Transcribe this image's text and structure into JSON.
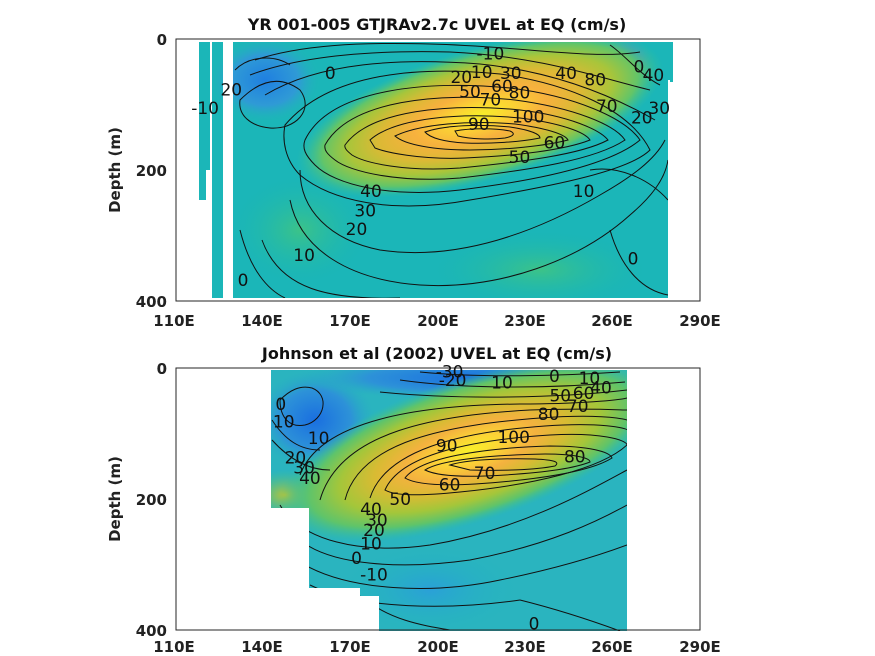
{
  "chart_data": [
    {
      "type": "heatmap",
      "title": "YR 001-005 GTJRAv2.7c UVEL at EQ (cm/s)",
      "ylabel": "Depth (m)",
      "xlabel": "",
      "xticks": [
        "110E",
        "140E",
        "170E",
        "200E",
        "230E",
        "260E",
        "290E"
      ],
      "yticks": [
        "0",
        "200",
        "400"
      ],
      "xlim": [
        110,
        290
      ],
      "ylim": [
        0,
        400
      ],
      "y_reversed": true,
      "colormap": "parula",
      "core": {
        "lon": 223,
        "depth": 110,
        "max": 100
      },
      "contour_labels": [
        {
          "text": "-10",
          "x": 218,
          "y": 22
        },
        {
          "text": "20",
          "x": 208,
          "y": 58
        },
        {
          "text": "10",
          "x": 215,
          "y": 50
        },
        {
          "text": "30",
          "x": 225,
          "y": 52
        },
        {
          "text": "40",
          "x": 244,
          "y": 52
        },
        {
          "text": "50",
          "x": 211,
          "y": 80
        },
        {
          "text": "60",
          "x": 222,
          "y": 72
        },
        {
          "text": "70",
          "x": 218,
          "y": 92
        },
        {
          "text": "80",
          "x": 228,
          "y": 82
        },
        {
          "text": "80",
          "x": 254,
          "y": 62
        },
        {
          "text": "90",
          "x": 214,
          "y": 130
        },
        {
          "text": "100",
          "x": 231,
          "y": 118
        },
        {
          "text": "60",
          "x": 240,
          "y": 158
        },
        {
          "text": "50",
          "x": 228,
          "y": 180
        },
        {
          "text": "70",
          "x": 258,
          "y": 102
        },
        {
          "text": "0",
          "x": 269,
          "y": 42
        },
        {
          "text": "40",
          "x": 274,
          "y": 55
        },
        {
          "text": "20",
          "x": 270,
          "y": 120
        },
        {
          "text": "30",
          "x": 276,
          "y": 105
        },
        {
          "text": "10",
          "x": 250,
          "y": 232
        },
        {
          "text": "0",
          "x": 267,
          "y": 335
        },
        {
          "text": "0",
          "x": 163,
          "y": 52
        },
        {
          "text": "20",
          "x": 129,
          "y": 77
        },
        {
          "text": "-10",
          "x": 120,
          "y": 105
        },
        {
          "text": "40",
          "x": 177,
          "y": 232
        },
        {
          "text": "30",
          "x": 175,
          "y": 262
        },
        {
          "text": "20",
          "x": 172,
          "y": 290
        },
        {
          "text": "10",
          "x": 154,
          "y": 330
        },
        {
          "text": "0",
          "x": 133,
          "y": 368
        }
      ]
    },
    {
      "type": "heatmap",
      "title": "Johnson et al (2002) UVEL at EQ (cm/s)",
      "ylabel": "Depth (m)",
      "xlabel": "",
      "xticks": [
        "110E",
        "140E",
        "170E",
        "200E",
        "230E",
        "260E",
        "290E"
      ],
      "yticks": [
        "0",
        "200",
        "400"
      ],
      "xlim": [
        110,
        290
      ],
      "ylim": [
        0,
        400
      ],
      "y_reversed": true,
      "colormap": "parula",
      "core": {
        "lon": 220,
        "depth": 120,
        "max": 100
      },
      "contour_labels": [
        {
          "text": "-30",
          "x": 204,
          "y": 5
        },
        {
          "text": "-20",
          "x": 205,
          "y": 18
        },
        {
          "text": "10",
          "x": 222,
          "y": 22
        },
        {
          "text": "0",
          "x": 240,
          "y": 12
        },
        {
          "text": "10",
          "x": 252,
          "y": 15
        },
        {
          "text": "50",
          "x": 242,
          "y": 42
        },
        {
          "text": "60",
          "x": 250,
          "y": 38
        },
        {
          "text": "40",
          "x": 256,
          "y": 30
        },
        {
          "text": "70",
          "x": 248,
          "y": 58
        },
        {
          "text": "80",
          "x": 238,
          "y": 70
        },
        {
          "text": "90",
          "x": 203,
          "y": 118
        },
        {
          "text": "100",
          "x": 226,
          "y": 105
        },
        {
          "text": "80",
          "x": 247,
          "y": 135
        },
        {
          "text": "70",
          "x": 216,
          "y": 160
        },
        {
          "text": "60",
          "x": 204,
          "y": 178
        },
        {
          "text": "50",
          "x": 187,
          "y": 200
        },
        {
          "text": "0",
          "x": 146,
          "y": 55
        },
        {
          "text": "10",
          "x": 147,
          "y": 82
        },
        {
          "text": "10",
          "x": 159,
          "y": 107
        },
        {
          "text": "20",
          "x": 151,
          "y": 137
        },
        {
          "text": "30",
          "x": 154,
          "y": 152
        },
        {
          "text": "40",
          "x": 156,
          "y": 168
        },
        {
          "text": "40",
          "x": 177,
          "y": 215
        },
        {
          "text": "30",
          "x": 179,
          "y": 232
        },
        {
          "text": "20",
          "x": 178,
          "y": 247
        },
        {
          "text": "10",
          "x": 177,
          "y": 268
        },
        {
          "text": "0",
          "x": 172,
          "y": 290
        },
        {
          "text": "-10",
          "x": 178,
          "y": 315
        },
        {
          "text": "0",
          "x": 233,
          "y": 390
        }
      ]
    }
  ]
}
